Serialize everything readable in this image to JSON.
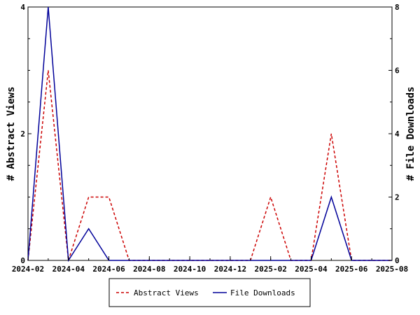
{
  "chart_data": {
    "type": "line",
    "x_ticks": [
      "2024-02",
      "2024-04",
      "2024-06",
      "2024-08",
      "2024-10",
      "2024-12",
      "2025-02",
      "2025-04",
      "2025-06",
      "2025-08"
    ],
    "x": [
      "2024-02",
      "2024-03",
      "2024-04",
      "2024-05",
      "2024-06",
      "2024-07",
      "2024-08",
      "2024-09",
      "2024-10",
      "2024-11",
      "2024-12",
      "2025-01",
      "2025-02",
      "2025-03",
      "2025-04",
      "2025-05",
      "2025-06",
      "2025-07",
      "2025-08"
    ],
    "xlim": [
      "2024-02",
      "2025-08"
    ],
    "y_left": {
      "label": "# Abstract Views",
      "ticks": [
        0,
        2,
        4
      ],
      "ylim": [
        0,
        4
      ]
    },
    "y_right": {
      "label": "# File Downloads",
      "ticks": [
        0,
        2,
        4,
        6,
        8
      ],
      "ylim": [
        0,
        8
      ]
    },
    "series": [
      {
        "name": "Abstract Views",
        "axis": "left",
        "color": "#cc0000",
        "dash": "dashed",
        "values": [
          0,
          3,
          0,
          1,
          1,
          0,
          0,
          0,
          0,
          0,
          0,
          0,
          1,
          0,
          0,
          2,
          0,
          0,
          0
        ]
      },
      {
        "name": "File Downloads",
        "axis": "right",
        "color": "#000099",
        "dash": "solid",
        "values": [
          0,
          8,
          0,
          1,
          0,
          0,
          0,
          0,
          0,
          0,
          0,
          0,
          0,
          0,
          0,
          2,
          0,
          0,
          0
        ]
      }
    ],
    "legend": {
      "placement": "bottom"
    },
    "grid": false
  }
}
